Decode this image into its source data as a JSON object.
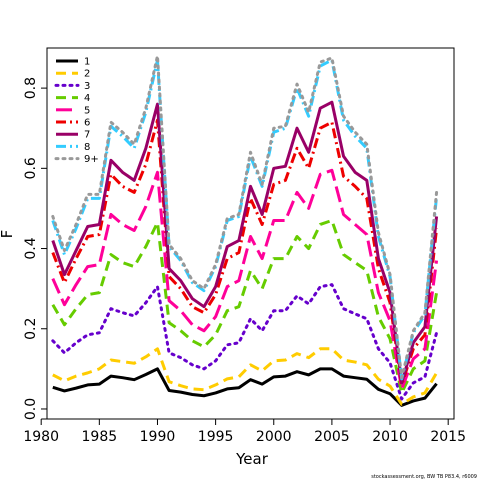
{
  "chart_data": {
    "type": "line",
    "xlabel": "Year",
    "ylabel": "F",
    "xlim": [
      1980.5,
      2015.5
    ],
    "ylim": [
      -0.025,
      0.9
    ],
    "x_ticks": [
      1980,
      1985,
      1990,
      1995,
      2000,
      2005,
      2010,
      2015
    ],
    "y_ticks": [
      0.0,
      0.2,
      0.4,
      0.6,
      0.8
    ],
    "y_tick_labels": [
      "0.0",
      "0.2",
      "0.4",
      "0.6",
      "0.8"
    ],
    "x": [
      1981,
      1982,
      1983,
      1984,
      1985,
      1986,
      1987,
      1988,
      1989,
      1990,
      1991,
      1992,
      1993,
      1994,
      1995,
      1996,
      1997,
      1998,
      1999,
      2000,
      2001,
      2002,
      2003,
      2004,
      2005,
      2006,
      2007,
      2008,
      2009,
      2010,
      2011,
      2012,
      2013,
      2014
    ],
    "legend_position": "top-left",
    "series": [
      {
        "name": "1",
        "color": "#000000",
        "dash": "solid",
        "values": [
          0.054,
          0.045,
          0.052,
          0.06,
          0.062,
          0.082,
          0.078,
          0.073,
          0.086,
          0.1,
          0.046,
          0.042,
          0.036,
          0.033,
          0.04,
          0.05,
          0.053,
          0.073,
          0.062,
          0.08,
          0.082,
          0.093,
          0.085,
          0.1,
          0.1,
          0.082,
          0.078,
          0.074,
          0.049,
          0.038,
          0.009,
          0.02,
          0.027,
          0.063
        ]
      },
      {
        "name": "2",
        "color": "#FFCC00",
        "dash": "dash",
        "values": [
          0.085,
          0.07,
          0.082,
          0.09,
          0.1,
          0.122,
          0.118,
          0.114,
          0.13,
          0.15,
          0.068,
          0.058,
          0.05,
          0.048,
          0.06,
          0.075,
          0.08,
          0.11,
          0.095,
          0.12,
          0.122,
          0.138,
          0.128,
          0.15,
          0.15,
          0.122,
          0.117,
          0.11,
          0.074,
          0.057,
          0.012,
          0.03,
          0.04,
          0.09
        ]
      },
      {
        "name": "3",
        "color": "#6600CC",
        "dash": "dot",
        "values": [
          0.17,
          0.14,
          0.165,
          0.185,
          0.19,
          0.25,
          0.24,
          0.232,
          0.265,
          0.305,
          0.14,
          0.128,
          0.11,
          0.1,
          0.12,
          0.16,
          0.165,
          0.225,
          0.195,
          0.245,
          0.245,
          0.282,
          0.262,
          0.305,
          0.31,
          0.25,
          0.237,
          0.225,
          0.15,
          0.115,
          0.025,
          0.065,
          0.08,
          0.19
        ]
      },
      {
        "name": "4",
        "color": "#66CC00",
        "dash": "dash",
        "values": [
          0.26,
          0.21,
          0.25,
          0.285,
          0.29,
          0.385,
          0.365,
          0.355,
          0.405,
          0.465,
          0.215,
          0.195,
          0.17,
          0.155,
          0.185,
          0.245,
          0.255,
          0.345,
          0.3,
          0.375,
          0.375,
          0.43,
          0.4,
          0.46,
          0.47,
          0.385,
          0.365,
          0.345,
          0.23,
          0.175,
          0.04,
          0.1,
          0.12,
          0.29
        ]
      },
      {
        "name": "5",
        "color": "#FF0099",
        "dash": "longdash",
        "values": [
          0.325,
          0.26,
          0.31,
          0.355,
          0.36,
          0.485,
          0.46,
          0.445,
          0.505,
          0.59,
          0.27,
          0.245,
          0.21,
          0.195,
          0.23,
          0.305,
          0.32,
          0.43,
          0.375,
          0.47,
          0.47,
          0.54,
          0.5,
          0.585,
          0.595,
          0.485,
          0.46,
          0.435,
          0.29,
          0.22,
          0.05,
          0.125,
          0.15,
          0.37
        ]
      },
      {
        "name": "6",
        "color": "#EE0000",
        "dash": "dashdot",
        "values": [
          0.39,
          0.315,
          0.375,
          0.43,
          0.435,
          0.585,
          0.555,
          0.54,
          0.61,
          0.72,
          0.33,
          0.3,
          0.255,
          0.24,
          0.285,
          0.375,
          0.39,
          0.525,
          0.46,
          0.56,
          0.57,
          0.65,
          0.6,
          0.7,
          0.715,
          0.58,
          0.555,
          0.525,
          0.35,
          0.265,
          0.06,
          0.15,
          0.185,
          0.45
        ]
      },
      {
        "name": "7",
        "color": "#990066",
        "dash": "solid",
        "values": [
          0.42,
          0.335,
          0.395,
          0.455,
          0.46,
          0.62,
          0.59,
          0.57,
          0.65,
          0.76,
          0.35,
          0.32,
          0.275,
          0.255,
          0.305,
          0.405,
          0.42,
          0.555,
          0.485,
          0.6,
          0.605,
          0.7,
          0.64,
          0.75,
          0.765,
          0.63,
          0.59,
          0.57,
          0.375,
          0.29,
          0.065,
          0.165,
          0.205,
          0.48
        ]
      },
      {
        "name": "8",
        "color": "#33CCFF",
        "dash": "dashdot",
        "values": [
          0.47,
          0.385,
          0.45,
          0.525,
          0.525,
          0.705,
          0.68,
          0.65,
          0.74,
          0.87,
          0.405,
          0.37,
          0.315,
          0.295,
          0.355,
          0.47,
          0.48,
          0.63,
          0.555,
          0.69,
          0.7,
          0.8,
          0.73,
          0.855,
          0.87,
          0.72,
          0.68,
          0.65,
          0.43,
          0.33,
          0.075,
          0.19,
          0.235,
          0.53
        ]
      },
      {
        "name": "9+",
        "color": "#999999",
        "dash": "dot",
        "values": [
          0.48,
          0.395,
          0.46,
          0.535,
          0.535,
          0.715,
          0.69,
          0.66,
          0.75,
          0.88,
          0.41,
          0.375,
          0.32,
          0.3,
          0.36,
          0.475,
          0.485,
          0.64,
          0.56,
          0.7,
          0.705,
          0.81,
          0.74,
          0.865,
          0.875,
          0.73,
          0.69,
          0.66,
          0.44,
          0.335,
          0.078,
          0.195,
          0.24,
          0.54
        ]
      }
    ],
    "footnote": "stockassessment.org, BW TB P83.4, r6009"
  }
}
